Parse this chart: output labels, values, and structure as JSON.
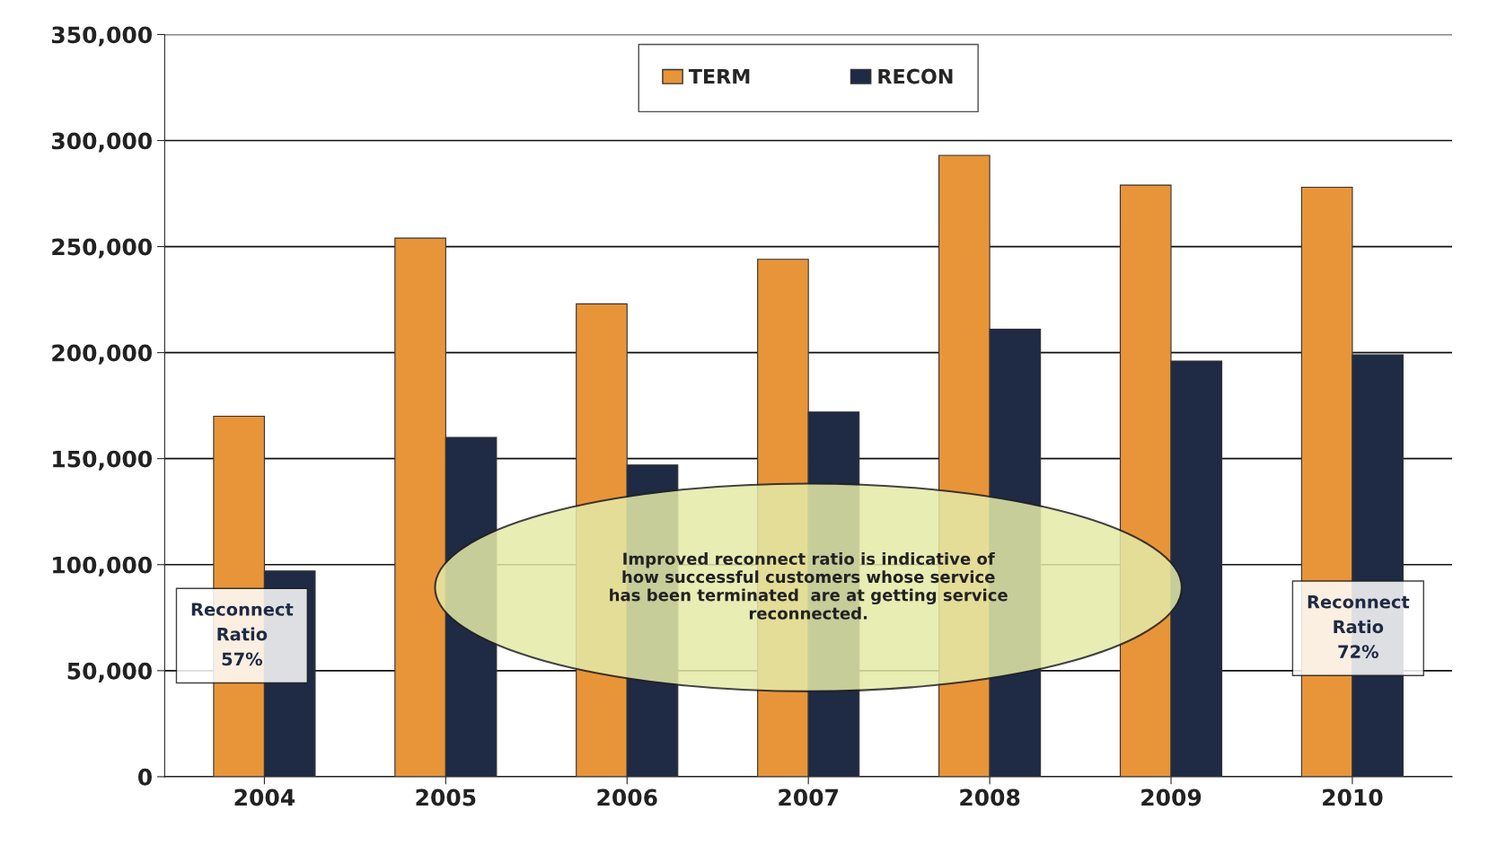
{
  "chart_data": {
    "type": "bar",
    "categories": [
      "2004",
      "2005",
      "2006",
      "2007",
      "2008",
      "2009",
      "2010"
    ],
    "series": [
      {
        "name": "TERM",
        "color": "#e8953a",
        "values": [
          170000,
          254000,
          223000,
          244000,
          293000,
          279000,
          278000
        ]
      },
      {
        "name": "RECON",
        "color": "#1f2a44",
        "values": [
          97000,
          160000,
          147000,
          172000,
          211000,
          196000,
          199000
        ]
      }
    ],
    "ylim": [
      0,
      350000
    ],
    "yticks": [
      0,
      {
        "value": 50000,
        "label": "50,000"
      },
      {
        "value": 100000,
        "label": "100,000"
      },
      {
        "value": 150000,
        "label": "150,000"
      },
      {
        "value": 200000,
        "label": "200,000"
      },
      {
        "value": 250000,
        "label": "250,000"
      },
      {
        "value": 300000,
        "label": "300,000"
      },
      {
        "value": 350000,
        "label": "350,000"
      }
    ],
    "grid": "y",
    "legend": "top",
    "annotations": [
      "Reconnect\nRatio\n57%",
      "Improved reconnect ratio is indicative of\nhow successful customers whose service\nhas been terminated  are at getting service\nreconnected.",
      "Reconnect\nRatio\n72%"
    ]
  }
}
